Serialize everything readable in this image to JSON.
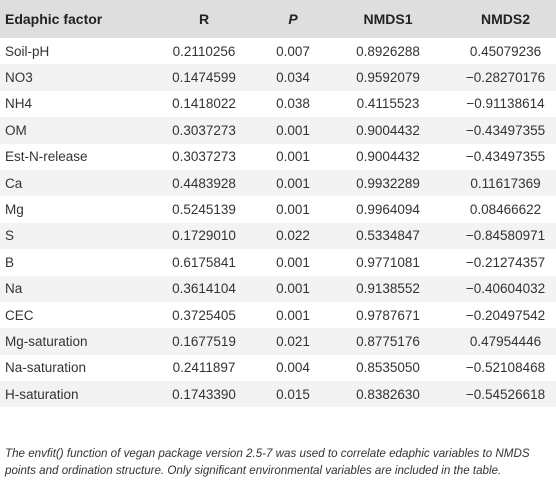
{
  "table": {
    "headers": [
      "Edaphic factor",
      "R",
      "P",
      "NMDS1",
      "NMDS2"
    ],
    "rows": [
      [
        "Soil-pH",
        "0.2110256",
        "0.007",
        "0.8926288",
        "0.45079236"
      ],
      [
        "NO3",
        "0.1474599",
        "0.034",
        "0.9592079",
        "−0.28270176"
      ],
      [
        "NH4",
        "0.1418022",
        "0.038",
        "0.4115523",
        "−0.91138614"
      ],
      [
        "OM",
        "0.3037273",
        "0.001",
        "0.9004432",
        "−0.43497355"
      ],
      [
        "Est-N-release",
        "0.3037273",
        "0.001",
        "0.9004432",
        "−0.43497355"
      ],
      [
        "Ca",
        "0.4483928",
        "0.001",
        "0.9932289",
        "0.11617369"
      ],
      [
        "Mg",
        "0.5245139",
        "0.001",
        "0.9964094",
        "0.08466622"
      ],
      [
        "S",
        "0.1729010",
        "0.022",
        "0.5334847",
        "−0.84580971"
      ],
      [
        "B",
        "0.6175841",
        "0.001",
        "0.9771081",
        "−0.21274357"
      ],
      [
        "Na",
        "0.3614104",
        "0.001",
        "0.9138552",
        "−0.40604032"
      ],
      [
        "CEC",
        "0.3725405",
        "0.001",
        "0.9787671",
        "−0.20497542"
      ],
      [
        "Mg-saturation",
        "0.1677519",
        "0.021",
        "0.8775176",
        "0.47954446"
      ],
      [
        "Na-saturation",
        "0.2411897",
        "0.004",
        "0.8535050",
        "−0.52108468"
      ],
      [
        "H-saturation",
        "0.1743390",
        "0.015",
        "0.8382630",
        "−0.54526618"
      ]
    ]
  },
  "footnote": "The envfit() function of vegan package version 2.5-7 was used to correlate edaphic variables to NMDS points and ordination structure. Only significant environmental variables are included in the table."
}
